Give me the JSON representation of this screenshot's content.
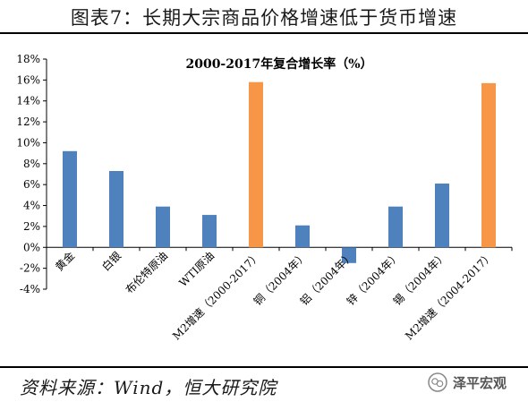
{
  "header": {
    "title": "图表7：长期大宗商品价格增速低于货币增速"
  },
  "footer": {
    "source": "资料来源：Wind，恒大研究院",
    "watermark": "泽平宏观"
  },
  "colors": {
    "blue_bar": "#4f81bd",
    "orange_bar": "#f79646"
  },
  "chart_data": {
    "type": "bar",
    "title": "2000-2017年复合增长率（%）",
    "categories": [
      "黄金",
      "白银",
      "布伦特原油",
      "WTI原油",
      "M2增速（2000-2017）",
      "铜（2004年）",
      "铝（2004年）",
      "锌（2004年）",
      "锡（2004年）",
      "M2增速（2004-2017）"
    ],
    "values": [
      9.2,
      7.3,
      3.9,
      3.1,
      15.8,
      2.1,
      -1.5,
      3.9,
      6.1,
      15.7
    ],
    "highlight": [
      false,
      false,
      false,
      false,
      true,
      false,
      false,
      false,
      false,
      true
    ],
    "ylim": [
      -4,
      18
    ],
    "yticks": [
      -4,
      -2,
      0,
      2,
      4,
      6,
      8,
      10,
      12,
      14,
      16,
      18
    ],
    "ytick_labels": [
      "-4%",
      "-2%",
      "0%",
      "2%",
      "4%",
      "6%",
      "8%",
      "10%",
      "12%",
      "14%",
      "16%",
      "18%"
    ],
    "grid": false,
    "legend": "none"
  }
}
